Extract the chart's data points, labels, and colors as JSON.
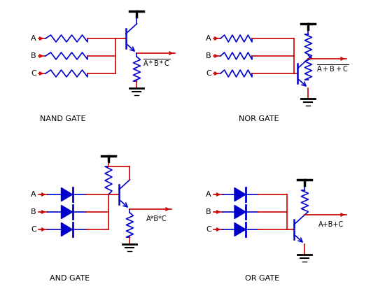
{
  "bg_color": "#ffffff",
  "blue": "#0000cc",
  "red": "#cc0000",
  "black": "#000000",
  "gate_labels": [
    "NAND GATE",
    "NOR GATE",
    "AND GATE",
    "OR GATE"
  ]
}
